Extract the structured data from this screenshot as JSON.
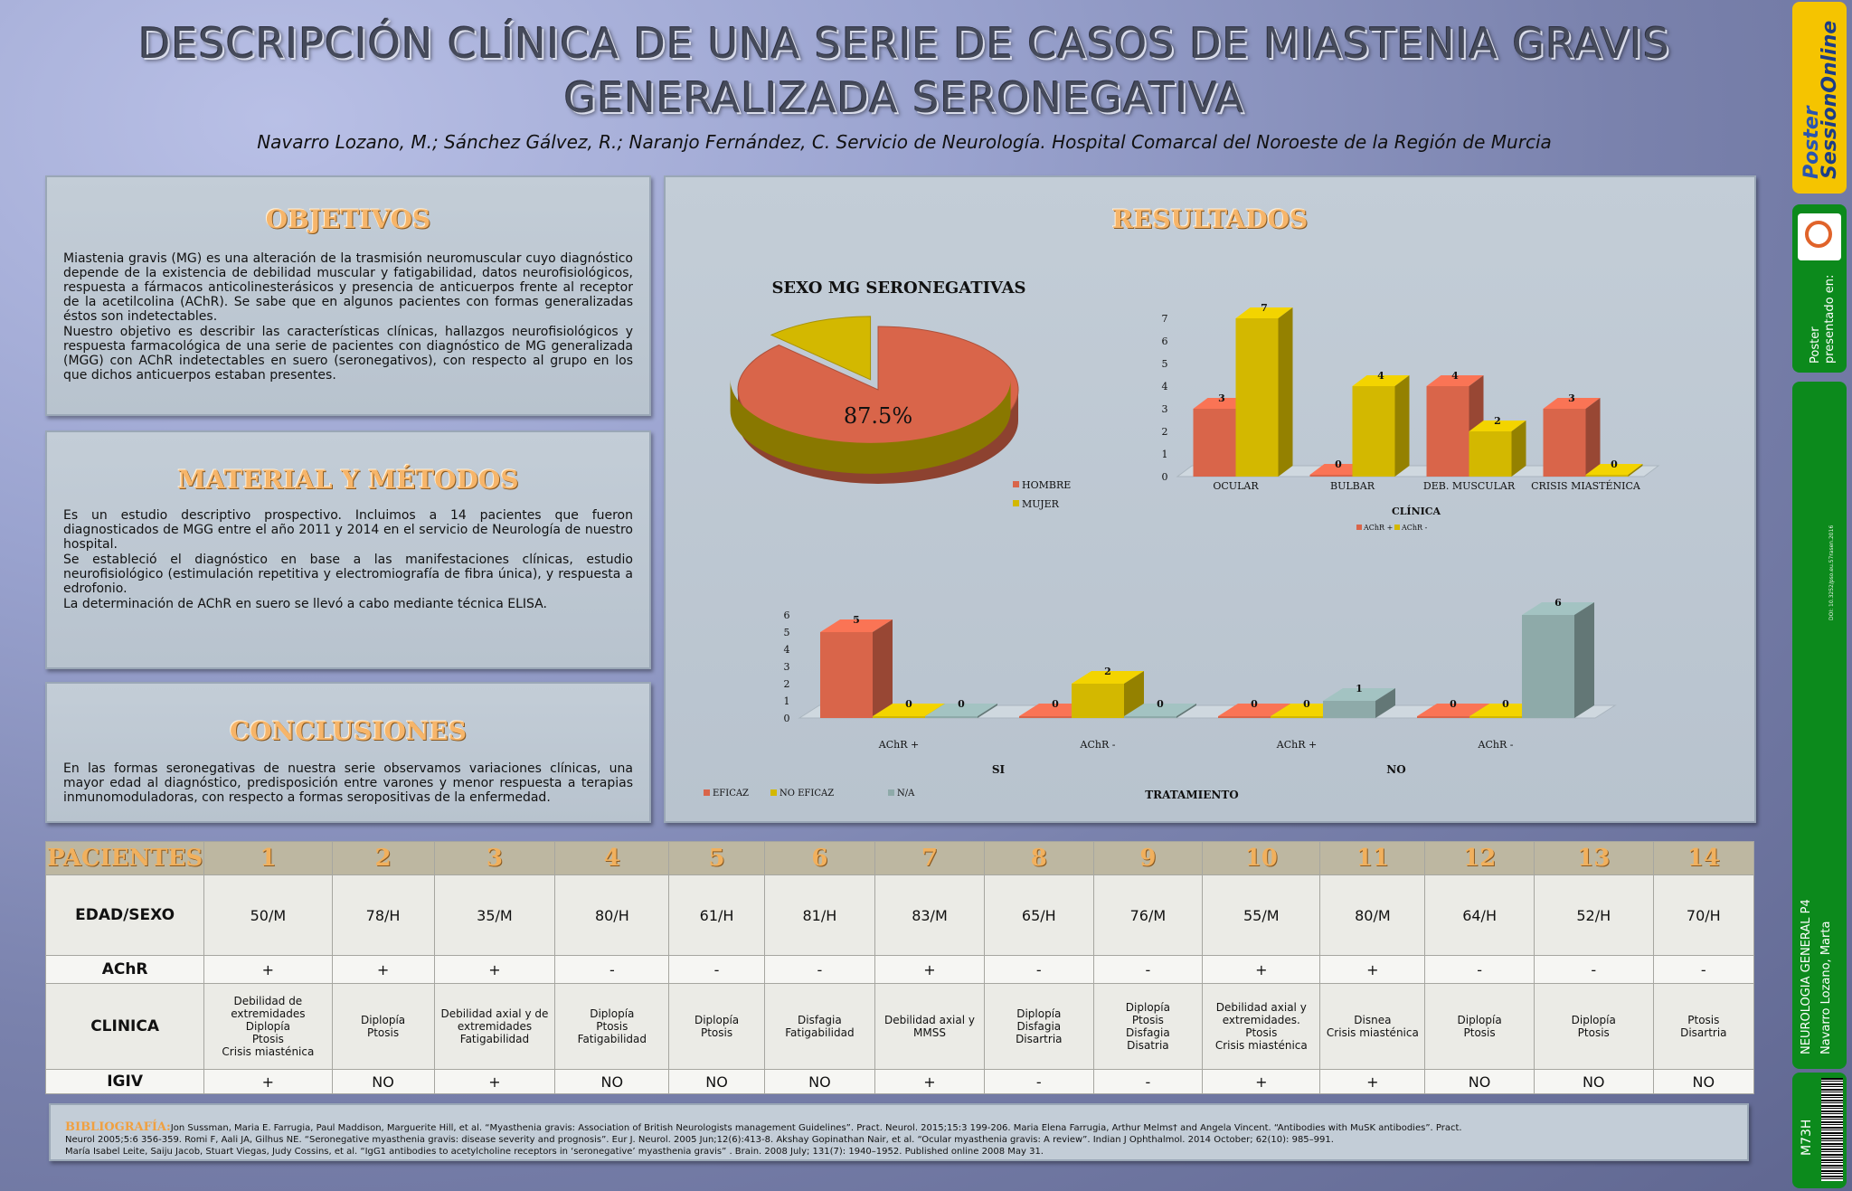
{
  "title_line1": "DESCRIPCIÓN CLÍNICA DE UNA SERIE DE CASOS DE MIASTENIA GRAVIS",
  "title_line2": "GENERALIZADA SERONEGATIVA",
  "authors": "Navarro Lozano, M.;  Sánchez Gálvez, R.;  Naranjo Fernández, C. Servicio de Neurología. Hospital Comarcal del Noroeste de la Región de Murcia",
  "objetivos": {
    "title": "OBJETIVOS",
    "p1": "Miastenia gravis (MG) es una alteración de la trasmisión neuromuscular cuyo diagnóstico depende de la existencia de debilidad muscular y fatigabilidad, datos neurofisiológicos, respuesta a fármacos anticolinesterásicos y presencia de anticuerpos frente al receptor de la acetilcolina (AChR). Se sabe que en algunos pacientes con formas generalizadas éstos son indetectables.",
    "p2": "Nuestro objetivo es describir las características clínicas, hallazgos neurofisiológicos y respuesta farmacológica de una serie de pacientes con diagnóstico de MG generalizada (MGG) con AChR indetectables en suero (seronegativos), con respecto al grupo en los que dichos anticuerpos estaban presentes."
  },
  "metodos": {
    "title": "MATERIAL Y MÉTODOS",
    "p1": "Es un estudio descriptivo prospectivo. Incluimos a 14 pacientes que fueron diagnosticados de MGG entre el año 2011 y 2014 en el servicio de Neurología de nuestro hospital.",
    "p2": "Se estableció el diagnóstico en base a las manifestaciones clínicas, estudio neurofisiológico (estimulación repetitiva y electromiografía de fibra única), y respuesta a edrofonio.",
    "p3": "La determinación de AChR en suero se llevó a cabo mediante técnica ELISA."
  },
  "conclusiones": {
    "title": "CONCLUSIONES",
    "p1": "En las formas seronegativas de nuestra serie observamos variaciones clínicas, una mayor edad al diagnóstico, predisposición entre varones y menor respuesta a terapias inmunomoduladoras, con respecto a formas seropositivas de la enfermedad."
  },
  "resultados": {
    "title": "RESULTADOS"
  },
  "colors": {
    "red": "#d9654a",
    "yellow": "#d3b800",
    "grey": "#8eaaa9",
    "orange_title": "#f6b56a"
  },
  "chart_data": [
    {
      "type": "pie",
      "title": "SEXO MG SERONEGATIVAS",
      "categories": [
        "HOMBRE",
        "MUJER"
      ],
      "values": [
        87.5,
        12.5
      ],
      "data_label": "87.5%",
      "legend": "right"
    },
    {
      "type": "bar",
      "xlabel": "CLÍNICA",
      "categories": [
        "OCULAR",
        "BULBAR",
        "DEB. MUSCULAR",
        "CRISIS MIASTÉNICA"
      ],
      "series": [
        {
          "name": "AChR +",
          "values": [
            3,
            0,
            4,
            3
          ]
        },
        {
          "name": "AChR -",
          "values": [
            7,
            4,
            2,
            0
          ]
        }
      ],
      "yticks": [
        "0",
        "1",
        "2",
        "3",
        "4",
        "5",
        "6",
        "7"
      ],
      "ylim": [
        0,
        7
      ],
      "legend": "bottom"
    },
    {
      "type": "bar",
      "xlabel": "TRATAMIENTO",
      "categories": [
        "AChR +",
        "AChR -",
        "AChR +",
        "AChR -"
      ],
      "groups": [
        "SI",
        "NO"
      ],
      "series": [
        {
          "name": "EFICAZ",
          "values": [
            5,
            0,
            0,
            0
          ]
        },
        {
          "name": "NO EFICAZ",
          "values": [
            0,
            2,
            0,
            0
          ]
        },
        {
          "name": "N/A",
          "values": [
            0,
            0,
            1,
            6
          ]
        }
      ],
      "yticks": [
        "0",
        "1",
        "2",
        "3",
        "4",
        "5",
        "6"
      ],
      "ylim": [
        0,
        6
      ],
      "legend": "bottom-left"
    }
  ],
  "table": {
    "header": "PACIENTES",
    "patients": [
      "1",
      "2",
      "3",
      "4",
      "5",
      "6",
      "7",
      "8",
      "9",
      "10",
      "11",
      "12",
      "13",
      "14"
    ],
    "edad_label": "EDAD/SEXO",
    "edad": [
      "50/M",
      "78/H",
      "35/M",
      "80/H",
      "61/H",
      "81/H",
      "83/M",
      "65/H",
      "76/M",
      "55/M",
      "80/M",
      "64/H",
      "52/H",
      "70/H"
    ],
    "achr_label": "AChR",
    "achr": [
      "+",
      "+",
      "+",
      "-",
      "-",
      "-",
      "+",
      "-",
      "-",
      "+",
      "+",
      "-",
      "-",
      "-"
    ],
    "clinica_label": "CLINICA",
    "clinica": [
      "Debilidad de\nextremidades\nDiplopía\nPtosis\nCrisis miasténica",
      "Diplopía\nPtosis",
      "Debilidad axial y de\nextremidades\nFatigabilidad",
      "Diplopía\nPtosis\nFatigabilidad",
      "Diplopía\nPtosis",
      "Disfagia\nFatigabilidad",
      "Debilidad axial y\nMMSS",
      "Diplopía\nDisfagia\nDisartria",
      "Diplopía\nPtosis\nDisfagia\nDisatria",
      "Debilidad axial  y\nextremidades.\nPtosis\nCrisis miasténica",
      "Disnea\nCrisis miasténica",
      "Diplopía\nPtosis",
      "Diplopía\nPtosis",
      "Ptosis\nDisartria"
    ],
    "igiv_label": "IGIV",
    "igiv": [
      "+",
      "NO",
      "+",
      "NO",
      "NO",
      "NO",
      "+",
      "-",
      "-",
      "+",
      "+",
      "NO",
      "NO",
      "NO"
    ]
  },
  "bibliografia": {
    "label": "BIBLIOGRAFÍA:",
    "line1": "Jon Sussman, Maria E. Farrugia, Paul Maddison, Marguerite Hill, et al. “Myasthenia gravis: Association of British Neurologists management Guidelines”. Pract. Neurol. 2015;15:3 199-206.  Maria Elena Farrugia, Arthur Melms† and Angela Vincent. “Antibodies with MuSK antibodies”. Pract.",
    "line2": "Neurol 2005;5:6 356-359. Romi F, Aali JA, Gilhus NE. “Seronegative myasthenia gravis: disease severity and prognosis”. Eur J. Neurol. 2005 Jun;12(6):413-8. Akshay Gopinathan Nair, et al. “Ocular myasthenia gravis: A review”. Indian J Ophthalmol. 2014 October; 62(10): 985–991.",
    "line3": "María Isabel Leite, Saiju Jacob, Stuart Viegas, Judy Cossins, et al. “IgG1 antibodies to acetylcholine receptors in ‘seronegative’ myasthenia gravis” . Brain. 2008 July; 131(7): 1940–1952. Published online 2008 May 31."
  },
  "sidebar": {
    "logo_line1": "Poster",
    "logo_line2": "SessionOnline",
    "presented": "Poster presentado en:",
    "doi": "DOI: 10.3252/pso.eu.57rasen.2016",
    "session": "NEUROLOGIA GENERAL P4",
    "author": "Navarro Lozano, Marta",
    "code": "M73H"
  }
}
